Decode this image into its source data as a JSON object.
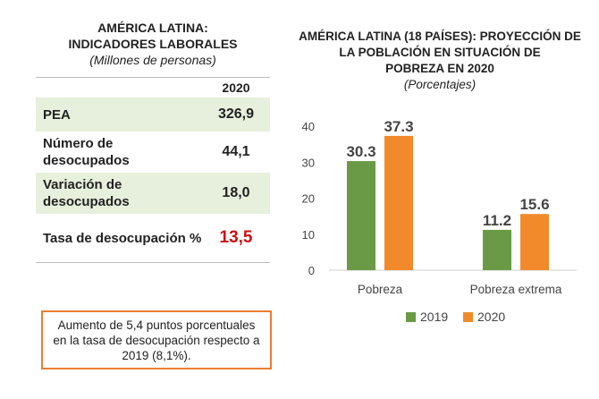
{
  "left": {
    "title_line1": "AMÉRICA LATINA:",
    "title_line2": "INDICADORES LABORALES",
    "subtitle": "(Millones de personas)",
    "year_header": "2020",
    "rows": [
      {
        "label": "PEA",
        "value": "326,9"
      },
      {
        "label": "Número de desocupados",
        "value": "44,1"
      },
      {
        "label": "Variación de desocupados",
        "value": "18,0"
      },
      {
        "label": "Tasa de desocupación %",
        "value": "13,5"
      }
    ],
    "note": "Aumento de 5,4 puntos porcentuales en la tasa de desocupación respecto a 2019 (8,1%).",
    "highlight_color": "#cc1111"
  },
  "right": {
    "title_line1": "AMÉRICA LATINA (18 PAÍSES): PROYECCIÓN DE",
    "title_line2": "LA POBLACIÓN EN SITUACIÓN DE",
    "title_line3": "POBREZA EN 2020",
    "subtitle": "(Porcentajes)"
  },
  "chart_data": {
    "type": "bar",
    "categories": [
      "Pobreza",
      "Pobreza extrema"
    ],
    "series": [
      {
        "name": "2019",
        "values": [
          30.3,
          11.2
        ],
        "color": "#6a9a46"
      },
      {
        "name": "2020",
        "values": [
          37.3,
          15.6
        ],
        "color": "#f28a2c"
      }
    ],
    "ylim": [
      0,
      40
    ],
    "yticks": [
      0,
      10,
      20,
      30,
      40
    ],
    "grid": false,
    "legend_position": "bottom"
  }
}
